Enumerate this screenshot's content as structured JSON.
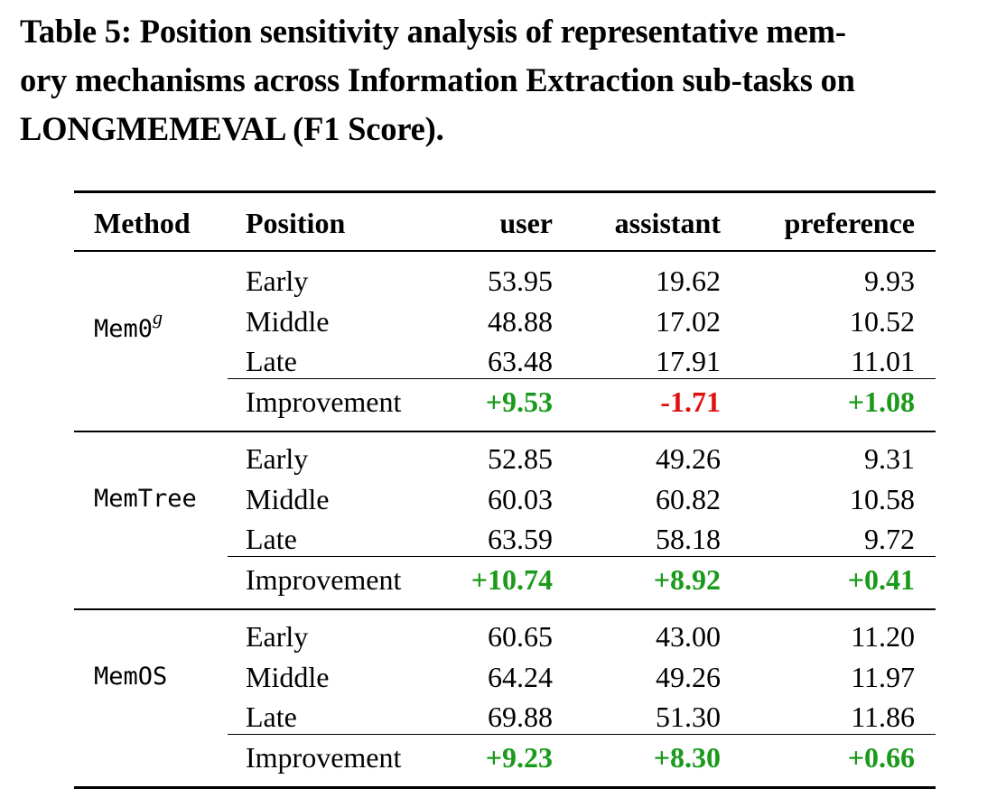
{
  "caption": {
    "line1": "Table 5: Position sensitivity analysis of representative mem-",
    "line2": "ory mechanisms across Information Extraction sub-tasks on",
    "line3": "LONGMEMEVAL (F1 Score)."
  },
  "table": {
    "headers": {
      "method": "Method",
      "position": "Position",
      "user": "user",
      "assistant": "assistant",
      "preference": "preference"
    },
    "groups": [
      {
        "method": "Mem0",
        "method_sup": "g",
        "rows": [
          {
            "position": "Early",
            "user": "53.95",
            "assistant": "19.62",
            "preference": "9.93"
          },
          {
            "position": "Middle",
            "user": "48.88",
            "assistant": "17.02",
            "preference": "10.52"
          },
          {
            "position": "Late",
            "user": "63.48",
            "assistant": "17.91",
            "preference": "11.01"
          }
        ],
        "improvement": {
          "label": "Improvement",
          "user": "+9.53",
          "assistant": "-1.71",
          "preference": "+1.08"
        }
      },
      {
        "method": "MemTree",
        "method_sup": "",
        "rows": [
          {
            "position": "Early",
            "user": "52.85",
            "assistant": "49.26",
            "preference": "9.31"
          },
          {
            "position": "Middle",
            "user": "60.03",
            "assistant": "60.82",
            "preference": "10.58"
          },
          {
            "position": "Late",
            "user": "63.59",
            "assistant": "58.18",
            "preference": "9.72"
          }
        ],
        "improvement": {
          "label": "Improvement",
          "user": "+10.74",
          "assistant": "+8.92",
          "preference": "+0.41"
        }
      },
      {
        "method": "MemOS",
        "method_sup": "",
        "rows": [
          {
            "position": "Early",
            "user": "60.65",
            "assistant": "43.00",
            "preference": "11.20"
          },
          {
            "position": "Middle",
            "user": "64.24",
            "assistant": "49.26",
            "preference": "11.97"
          },
          {
            "position": "Late",
            "user": "69.88",
            "assistant": "51.30",
            "preference": "11.86"
          }
        ],
        "improvement": {
          "label": "Improvement",
          "user": "+9.23",
          "assistant": "+8.30",
          "preference": "+0.66"
        }
      }
    ]
  },
  "colors": {
    "positive": "#1a9a1a",
    "negative": "#e01010",
    "text": "#000000"
  }
}
